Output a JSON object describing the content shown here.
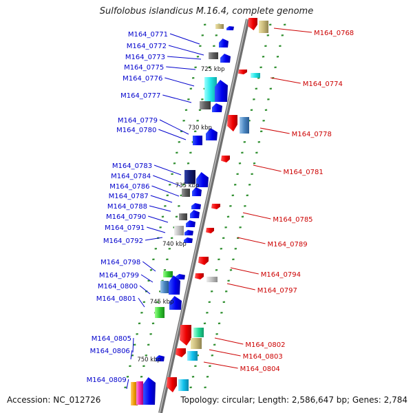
{
  "title": "Sulfolobus islandicus M.16.4, complete genome",
  "accession_text": "Accession: NC_012726",
  "topology_text": "Topology: circular; Length: 2,586,647 bp; Genes: 2,784",
  "colors": {
    "backbone": "#8a8a8a",
    "forward_label": "#0000cc",
    "reverse_label": "#cc0000",
    "tick": "#2f8f2f"
  },
  "scale_labels": [
    "725 kbp",
    "730 kbp",
    "735 kbp",
    "740 kbp",
    "745 kbp",
    "750 kbp"
  ],
  "forward_genes": [
    {
      "label": "M164_0771"
    },
    {
      "label": "M164_0772"
    },
    {
      "label": "M164_0773"
    },
    {
      "label": "M164_0775"
    },
    {
      "label": "M164_0776"
    },
    {
      "label": "M164_0777"
    },
    {
      "label": "M164_0779"
    },
    {
      "label": "M164_0780"
    },
    {
      "label": "M164_0783"
    },
    {
      "label": "M164_0784"
    },
    {
      "label": "M164_0786"
    },
    {
      "label": "M164_0787"
    },
    {
      "label": "M164_0788"
    },
    {
      "label": "M164_0790"
    },
    {
      "label": "M164_0791"
    },
    {
      "label": "M164_0792"
    },
    {
      "label": "M164_0798"
    },
    {
      "label": "M164_0799"
    },
    {
      "label": "M164_0800"
    },
    {
      "label": "M164_0801"
    },
    {
      "label": "M164_0805"
    },
    {
      "label": "M164_0806"
    },
    {
      "label": "M164_0809"
    }
  ],
  "reverse_genes": [
    {
      "label": "M164_0768"
    },
    {
      "label": "M164_0774"
    },
    {
      "label": "M164_0778"
    },
    {
      "label": "M164_0781"
    },
    {
      "label": "M164_0785"
    },
    {
      "label": "M164_0789"
    },
    {
      "label": "M164_0794"
    },
    {
      "label": "M164_0797"
    },
    {
      "label": "M164_0802"
    },
    {
      "label": "M164_0803"
    },
    {
      "label": "M164_0804"
    }
  ]
}
